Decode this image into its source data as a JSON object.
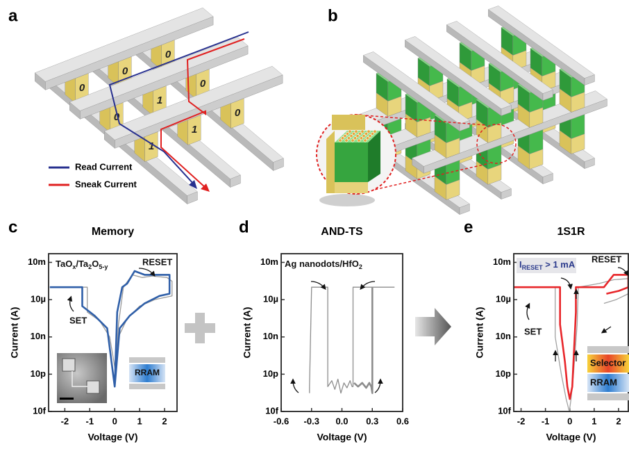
{
  "panel_labels": [
    "a",
    "b",
    "c",
    "d",
    "e"
  ],
  "diagram_a": {
    "bits": [
      [
        "0",
        "0",
        "0"
      ],
      [
        "0",
        "1",
        "0"
      ],
      [
        "1",
        "1",
        "0"
      ]
    ],
    "legend": [
      "Read Current",
      "Sneak Current"
    ]
  },
  "chart_data": [
    {
      "type": "line",
      "title": "Memory",
      "x_label": "Voltage (V)",
      "y_label": "Current (A)",
      "log_y": true,
      "xlim": [
        -2.65,
        2.5
      ],
      "xticks": [
        -2,
        -1,
        0,
        1,
        2
      ],
      "ylim": [
        1e-14,
        0.05
      ],
      "yticks": [
        {
          "value": 1e-14,
          "label": "10f"
        },
        {
          "value": 1e-11,
          "label": "10p"
        },
        {
          "value": 1e-08,
          "label": "10n"
        },
        {
          "value": 1e-05,
          "label": "10µ"
        },
        {
          "value": 0.01,
          "label": "10m"
        }
      ],
      "material": [
        "TaO",
        "x",
        "/Ta",
        "2",
        "O",
        "5-y"
      ],
      "labels": [
        "RESET",
        "SET"
      ],
      "device": [
        "RRAM"
      ],
      "series": [
        {
          "color": "#9a9a9a",
          "x": [
            -2.6,
            -1.1,
            -1.1,
            -0.6,
            -0.2,
            0.05,
            0.15,
            0.35,
            0.7,
            1.1,
            1.5,
            2.1,
            2.3,
            2.3,
            1.6,
            1.0,
            0.5,
            0.15
          ],
          "values": [
            0.0001,
            0.0001,
            1e-06,
            2e-07,
            1e-08,
            1e-11,
            1e-07,
            0.0001,
            0.001,
            0.0006,
            0.0008,
            0.0006,
            0.0003,
            2e-05,
            1e-05,
            3e-06,
            3e-07,
            1e-08
          ]
        },
        {
          "color": "#2f5fa8",
          "x": [
            -2.6,
            -1.3,
            -1.3,
            -0.8,
            -0.3,
            0,
            0.1,
            0.3,
            0.5,
            0.8,
            1.2,
            1.6,
            2.2,
            2.2,
            1.8,
            1.2,
            0.6,
            0.2,
            0
          ],
          "values": [
            0.0001,
            0.0001,
            3e-06,
            5e-07,
            5e-08,
            1e-12,
            1e-06,
            0.0001,
            0.0002,
            0.002,
            0.001,
            0.001,
            0.001,
            3e-05,
            2e-05,
            5e-06,
            5e-07,
            5e-08,
            1e-12
          ]
        }
      ]
    },
    {
      "type": "line",
      "title": "AND-TS",
      "x_label": "Voltage (V)",
      "y_label": "Current (A)",
      "log_y": true,
      "xlim": [
        -0.6,
        0.6
      ],
      "xticks": [
        -0.6,
        -0.3,
        {
          "value": 0,
          "label": "0.0"
        },
        0.3,
        0.6
      ],
      "ylim": [
        1e-14,
        0.05
      ],
      "yticks": [
        {
          "value": 1e-14,
          "label": "10f"
        },
        {
          "value": 1e-11,
          "label": "10p"
        },
        {
          "value": 1e-08,
          "label": "10n"
        },
        {
          "value": 1e-05,
          "label": "10µ"
        },
        {
          "value": 0.01,
          "label": "10m"
        }
      ],
      "material": [
        "Ag nanodots/HfO",
        "2"
      ],
      "labels": [],
      "device": [],
      "series": [
        {
          "color": "#8c8c8c",
          "x": [
            -0.32,
            -0.32,
            -0.3,
            -0.14,
            -0.14,
            -0.1,
            -0.07,
            -0.04,
            -0.01,
            0.02,
            0.05,
            0.08,
            0.1,
            0.11,
            0.11,
            0.52
          ],
          "values": [
            3e-13,
            1e-12,
            0.0001,
            0.0001,
            1e-12,
            3e-12,
            6e-13,
            4e-12,
            3e-13,
            2e-12,
            8e-13,
            3e-12,
            1e-12,
            1e-12,
            0.0001,
            0.0001
          ]
        },
        {
          "color": "#8c8c8c",
          "x": [
            0.3,
            0.3,
            0.29,
            0.27,
            0.24,
            0.2,
            0.16,
            0.12
          ],
          "values": [
            0.0001,
            3e-13,
            1e-12,
            2e-12,
            8e-13,
            2e-12,
            1e-12,
            2e-12
          ]
        }
      ]
    },
    {
      "type": "line",
      "title": "1S1R",
      "x_label": "Voltage (V)",
      "y_label": "Current (A)",
      "log_y": true,
      "xlim": [
        -2.3,
        2.4
      ],
      "xticks": [
        -2,
        -1,
        0,
        1,
        2
      ],
      "ylim": [
        1e-14,
        0.05
      ],
      "yticks": [
        {
          "value": 1e-14,
          "label": "10f"
        },
        {
          "value": 1e-11,
          "label": "10p"
        },
        {
          "value": 1e-08,
          "label": "10n"
        },
        {
          "value": 1e-05,
          "label": "10µ"
        },
        {
          "value": 0.01,
          "label": "10m"
        }
      ],
      "material": [
        "I",
        "RESET",
        " > 1 mA"
      ],
      "labels": [
        "RESET",
        "SET"
      ],
      "device": [
        "Selector",
        "RRAM"
      ],
      "series": [
        {
          "color": "#a0a0a0",
          "x": [
            -2.3,
            -0.6,
            -0.6,
            -0.35,
            -0.15,
            -0.02,
            0.05,
            0.15,
            0.3,
            0.35,
            1.2,
            1.8,
            2.4,
            2.4,
            1.9,
            1.4
          ],
          "values": [
            0.0001,
            0.0001,
            1e-08,
            1e-11,
            1e-13,
            1e-14,
            1e-13,
            1e-11,
            1e-07,
            0.0001,
            0.0002,
            0.0004,
            0.0005,
            3e-05,
            1e-05,
            5e-06
          ]
        },
        {
          "color": "#e8262a",
          "x": [
            -2.3,
            -0.4,
            -0.4,
            -0.2,
            -0.1,
            0,
            0.1,
            0.15,
            0.25,
            0.25,
            1.4,
            1.8,
            2.4,
            2.4,
            2.0,
            1.5
          ],
          "values": [
            0.0001,
            0.0001,
            1e-07,
            1e-10,
            1e-12,
            1e-13,
            1e-12,
            1e-10,
            1e-06,
            0.0001,
            0.0001,
            0.001,
            0.001,
            0.0001,
            5e-05,
            3e-05
          ]
        }
      ]
    }
  ]
}
